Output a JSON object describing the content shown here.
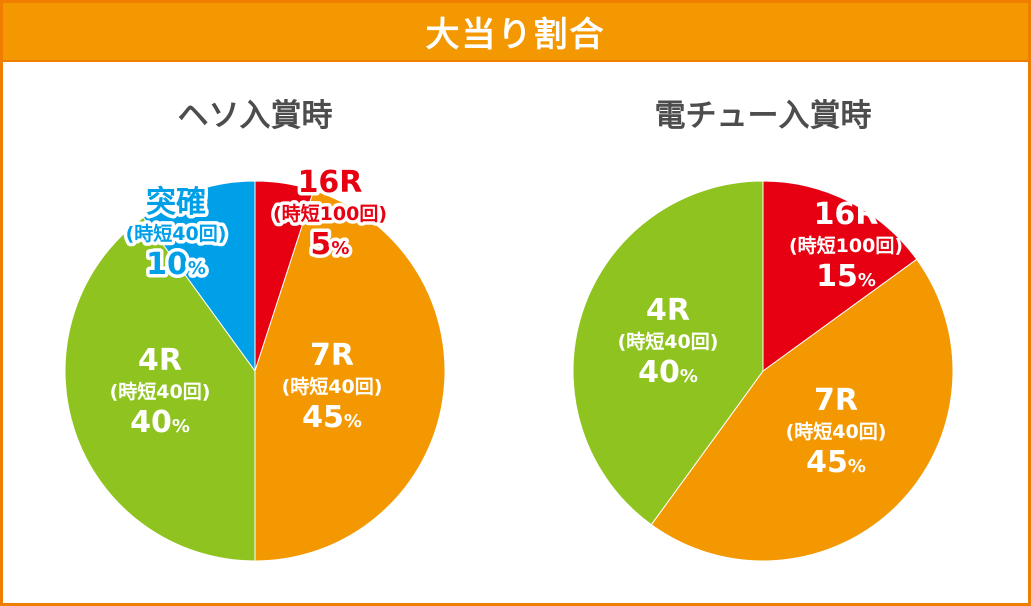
{
  "header": {
    "title": "大当り割合"
  },
  "colors": {
    "red": "#e60012",
    "orange": "#f39800",
    "green": "#8fc31f",
    "blue": "#00a0e9",
    "frame": "#ef7d00"
  },
  "chart_data": [
    {
      "type": "pie",
      "title": "ヘソ入賞時",
      "slices": [
        {
          "name": "16R",
          "sub": "(時短100回)",
          "value": 5,
          "pct": "5",
          "unit": "%",
          "color": "#e60012",
          "outlined": true
        },
        {
          "name": "7R",
          "sub": "(時短40回)",
          "value": 45,
          "pct": "45",
          "unit": "%",
          "color": "#f39800",
          "outlined": false
        },
        {
          "name": "4R",
          "sub": "(時短40回)",
          "value": 40,
          "pct": "40",
          "unit": "%",
          "color": "#8fc31f",
          "outlined": false
        },
        {
          "name": "突確",
          "sub": "(時短40回)",
          "value": 10,
          "pct": "10",
          "unit": "%",
          "color": "#00a0e9",
          "outlined": true
        }
      ]
    },
    {
      "type": "pie",
      "title": "電チュー入賞時",
      "slices": [
        {
          "name": "16R",
          "sub": "(時短100回)",
          "value": 15,
          "pct": "15",
          "unit": "%",
          "color": "#e60012",
          "outlined": false
        },
        {
          "name": "7R",
          "sub": "(時短40回)",
          "value": 45,
          "pct": "45",
          "unit": "%",
          "color": "#f39800",
          "outlined": false
        },
        {
          "name": "4R",
          "sub": "(時短40回)",
          "value": 40,
          "pct": "40",
          "unit": "%",
          "color": "#8fc31f",
          "outlined": false
        }
      ]
    }
  ]
}
